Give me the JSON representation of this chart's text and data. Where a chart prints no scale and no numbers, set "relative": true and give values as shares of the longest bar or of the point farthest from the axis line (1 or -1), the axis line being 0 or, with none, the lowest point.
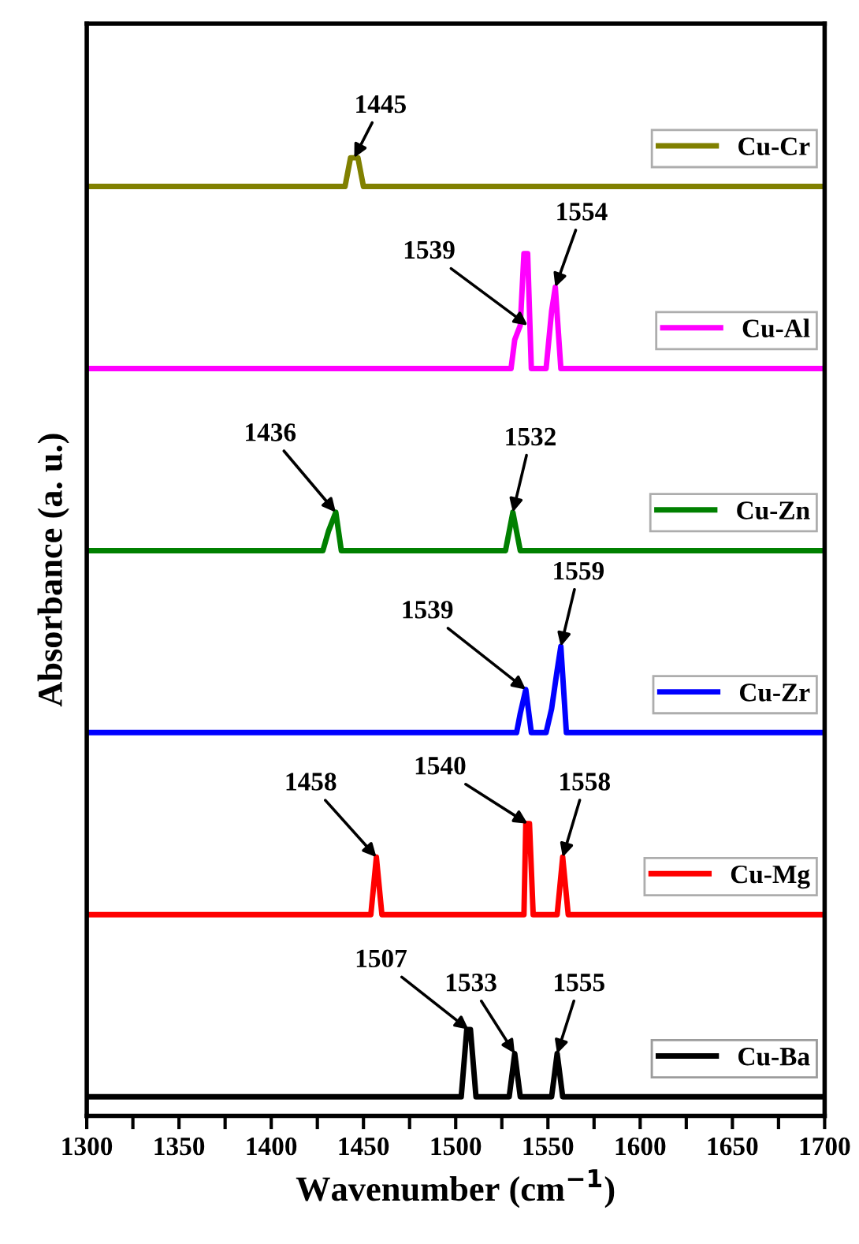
{
  "chart_data": {
    "type": "line",
    "relative": true,
    "xlabel": "Wavenumber (cm$^{−1}$)",
    "ylabel": "Absorbance (a. u.)",
    "xlim": [
      1300,
      1700
    ],
    "xticks": [
      1300,
      {
        "value": 1325,
        "label": null
      },
      1350,
      {
        "value": 1375,
        "label": null
      },
      1400,
      {
        "value": 1425,
        "label": null
      },
      1450,
      {
        "value": 1475,
        "label": null
      },
      1500,
      {
        "value": 1525,
        "label": null
      },
      1550,
      {
        "value": 1575,
        "label": null
      },
      1600,
      {
        "value": 1625,
        "label": null
      },
      1650,
      {
        "value": 1675,
        "label": null
      },
      1700
    ],
    "tick_labels": "x",
    "grid": false,
    "legend": "right",
    "marker": "none",
    "line_style": "solid",
    "series": [
      {
        "name": "Cu-Cr",
        "color": "#808000",
        "x": [
          1300,
          1440,
          1443,
          1447,
          1450,
          1700
        ],
        "values": [
          0.97,
          0.97,
          1.0,
          1.0,
          0.97,
          0.97
        ]
      },
      {
        "name": "Cu-Al",
        "color": "#ff00ff",
        "x": [
          1300,
          1530,
          1532,
          1535,
          1537,
          1539,
          1541,
          1549,
          1552,
          1554,
          1557,
          1700
        ],
        "values": [
          0.78,
          0.78,
          0.81,
          0.825,
          0.9,
          0.9,
          0.78,
          0.78,
          0.84,
          0.865,
          0.78,
          0.78
        ]
      },
      {
        "name": "Cu-Zn",
        "color": "#008000",
        "x": [
          1300,
          1428,
          1431,
          1435,
          1438,
          1527,
          1531,
          1535,
          1700
        ],
        "values": [
          0.59,
          0.59,
          0.61,
          0.63,
          0.59,
          0.59,
          0.63,
          0.59,
          0.59
        ]
      },
      {
        "name": "Cu-Zr",
        "color": "#0000ff",
        "x": [
          1300,
          1533,
          1535,
          1538,
          1541,
          1549,
          1552,
          1555,
          1557,
          1560,
          1700
        ],
        "values": [
          0.4,
          0.4,
          0.42,
          0.445,
          0.4,
          0.4,
          0.425,
          0.465,
          0.49,
          0.4,
          0.4
        ]
      },
      {
        "name": "Cu-Mg",
        "color": "#ff0000",
        "x": [
          1300,
          1454,
          1457,
          1460,
          1537,
          1538,
          1540,
          1542,
          1555,
          1558,
          1561,
          1700
        ],
        "values": [
          0.21,
          0.21,
          0.27,
          0.21,
          0.21,
          0.305,
          0.305,
          0.21,
          0.21,
          0.27,
          0.21,
          0.21
        ]
      },
      {
        "name": "Cu-Ba",
        "color": "#000000",
        "x": [
          1300,
          1503,
          1506,
          1508,
          1511,
          1529,
          1532,
          1535,
          1552,
          1555,
          1558,
          1700
        ],
        "values": [
          0.02,
          0.02,
          0.09,
          0.09,
          0.02,
          0.02,
          0.065,
          0.02,
          0.02,
          0.065,
          0.02,
          0.02
        ]
      }
    ],
    "annotations": [
      {
        "text": "1445",
        "x": 1445,
        "y": 1.0
      },
      {
        "text": "1539",
        "x": 1539,
        "y": 0.825
      },
      {
        "text": "1554",
        "x": 1554,
        "y": 0.865
      },
      {
        "text": "1436",
        "x": 1435,
        "y": 0.63
      },
      {
        "text": "1532",
        "x": 1531,
        "y": 0.63
      },
      {
        "text": "1539",
        "x": 1538,
        "y": 0.445
      },
      {
        "text": "1559",
        "x": 1557,
        "y": 0.49
      },
      {
        "text": "1458",
        "x": 1457,
        "y": 0.27
      },
      {
        "text": "1540",
        "x": 1539,
        "y": 0.305
      },
      {
        "text": "1558",
        "x": 1558,
        "y": 0.27
      },
      {
        "text": "1507",
        "x": 1507,
        "y": 0.09
      },
      {
        "text": "1533",
        "x": 1532,
        "y": 0.065
      },
      {
        "text": "1555",
        "x": 1555,
        "y": 0.065
      }
    ]
  }
}
